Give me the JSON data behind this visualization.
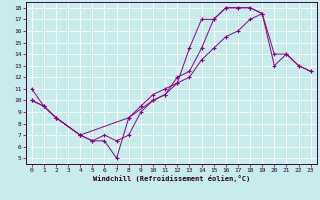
{
  "xlabel": "Windchill (Refroidissement éolien,°C)",
  "bg_color": "#c8ecec",
  "line_color": "#880088",
  "xlim": [
    -0.5,
    23.5
  ],
  "ylim": [
    4.5,
    18.5
  ],
  "xticks": [
    0,
    1,
    2,
    3,
    4,
    5,
    6,
    7,
    8,
    9,
    10,
    11,
    12,
    13,
    14,
    15,
    16,
    17,
    18,
    19,
    20,
    21,
    22,
    23
  ],
  "yticks": [
    5,
    6,
    7,
    8,
    9,
    10,
    11,
    12,
    13,
    14,
    15,
    16,
    17,
    18
  ],
  "line1_x": [
    0,
    1,
    2,
    4,
    5,
    6,
    7,
    8,
    9,
    10,
    11,
    12,
    13,
    14,
    15,
    16,
    17,
    18,
    19
  ],
  "line1_y": [
    11,
    9.5,
    8.5,
    7.0,
    6.5,
    6.5,
    5.0,
    8.5,
    9.5,
    10.5,
    11.0,
    11.5,
    14.5,
    17.0,
    17.0,
    18.0,
    18.0,
    18.0,
    17.5
  ],
  "line2_x": [
    0,
    1,
    2,
    4,
    5,
    6,
    7,
    8,
    9,
    10,
    11,
    12,
    13,
    14,
    15,
    16,
    17,
    18,
    19,
    20,
    21,
    22,
    23
  ],
  "line2_y": [
    10,
    9.5,
    8.5,
    7.0,
    6.5,
    7.0,
    6.5,
    7.0,
    9.0,
    10.0,
    10.5,
    12.0,
    12.5,
    14.5,
    17.0,
    18.0,
    18.0,
    18.0,
    17.5,
    14.0,
    14.0,
    13.0,
    12.5
  ],
  "line3_x": [
    0,
    1,
    2,
    4,
    8,
    10,
    11,
    12,
    13,
    14,
    15,
    16,
    17,
    18,
    19,
    20,
    21,
    22,
    23
  ],
  "line3_y": [
    10,
    9.5,
    8.5,
    7.0,
    8.5,
    10.0,
    10.5,
    11.5,
    12.0,
    13.5,
    14.5,
    15.5,
    16.0,
    17.0,
    17.5,
    13.0,
    14.0,
    13.0,
    12.5
  ]
}
